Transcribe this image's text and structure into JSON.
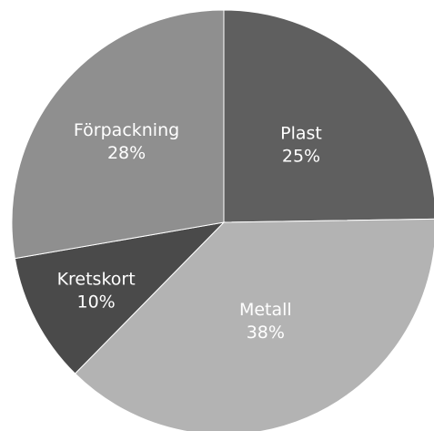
{
  "chart_data": {
    "type": "pie",
    "title": "",
    "slices": [
      {
        "label": "Plast",
        "value": 25,
        "value_label": "25%",
        "color": "#5f5f5f"
      },
      {
        "label": "Metall",
        "value": 38,
        "value_label": "38%",
        "color": "#b3b3b3"
      },
      {
        "label": "Kretskort",
        "value": 10,
        "value_label": "10%",
        "color": "#4a4a4a"
      },
      {
        "label": "Förpackning",
        "value": 28,
        "value_label": "28%",
        "color": "#8f8f8f"
      }
    ],
    "start_angle": "12 o'clock",
    "direction": "clockwise",
    "legend": "none",
    "labels": "inside slices"
  }
}
